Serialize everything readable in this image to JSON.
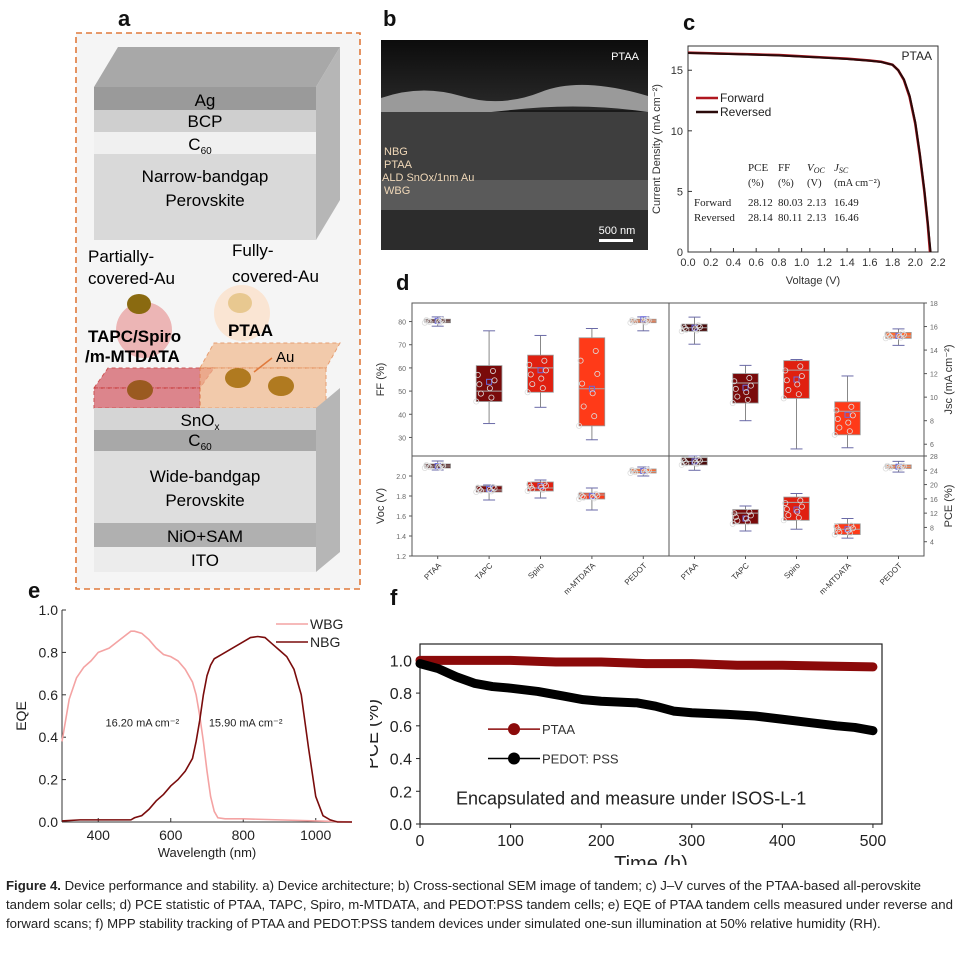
{
  "panels": {
    "a": "a",
    "b": "b",
    "c": "c",
    "d": "d",
    "e": "e",
    "f": "f"
  },
  "architecture": {
    "top_layers": [
      "Ag",
      "BCP",
      "C",
      "Narrow-bandgap",
      "Perovskite"
    ],
    "c60_sub": "60",
    "partially_label_1": "Partially-",
    "partially_label_2": "covered-Au",
    "fully_label_1": "Fully-",
    "fully_label_2": "covered-Au",
    "htl_left_1": "TAPC/Spiro",
    "htl_left_2": "/m-MTDATA",
    "htl_right": "PTAA",
    "au_label": "Au",
    "snox": "SnO",
    "snox_sub": "x",
    "c60": "C",
    "wbg_1": "Wide-bandgap",
    "wbg_2": "Perovskite",
    "nio": "NiO+SAM",
    "ito": "ITO"
  },
  "sem": {
    "corner_label": "PTAA",
    "layers": [
      "NBG",
      "PTAA",
      "ALD SnOx/1nm Au",
      "WBG"
    ],
    "scale_bar": "500 nm"
  },
  "colors": {
    "forward": "#b0171f",
    "reversed": "#2a0a0a",
    "wbg": "#f4a3a3",
    "nbg": "#7a0c0c",
    "ptaa_f": "#8b0a0a",
    "pedot_f": "#000000",
    "dash_orange": "#e07a3c",
    "box_ptaa": "#4a0a0a",
    "box_tapc": "#7a0a0a",
    "box_spiro": "#e02010",
    "box_mtdata": "#ff3a18",
    "box_pedot": "#ff6a30"
  },
  "chart_data": [
    {
      "id": "c",
      "type": "line",
      "title": "",
      "corner_label": "PTAA",
      "xlabel": "Voltage (V)",
      "ylabel": "Current Density (mA cm⁻²)",
      "xlim": [
        0.0,
        2.2
      ],
      "ylim": [
        0,
        17
      ],
      "xticks": [
        "0.0",
        "0.2",
        "0.4",
        "0.6",
        "0.8",
        "1.0",
        "1.2",
        "1.4",
        "1.6",
        "1.8",
        "2.0",
        "2.2"
      ],
      "yticks": [
        "0",
        "5",
        "10",
        "15"
      ],
      "legend": [
        "Forward",
        "Reversed"
      ],
      "series": [
        {
          "name": "Forward",
          "x": [
            0,
            0.2,
            0.4,
            0.6,
            0.8,
            1.0,
            1.2,
            1.4,
            1.6,
            1.7,
            1.8,
            1.85,
            1.9,
            1.95,
            2.0,
            2.04,
            2.08,
            2.11,
            2.13
          ],
          "y": [
            16.45,
            16.4,
            16.35,
            16.3,
            16.25,
            16.15,
            16.05,
            15.95,
            15.8,
            15.7,
            15.45,
            15.0,
            14.2,
            12.8,
            10.6,
            8.0,
            5.0,
            2.3,
            0
          ]
        },
        {
          "name": "Reversed",
          "x": [
            0,
            0.2,
            0.4,
            0.6,
            0.8,
            1.0,
            1.2,
            1.4,
            1.6,
            1.7,
            1.8,
            1.85,
            1.9,
            1.95,
            2.0,
            2.04,
            2.08,
            2.11,
            2.135
          ],
          "y": [
            16.42,
            16.38,
            16.33,
            16.28,
            16.22,
            16.12,
            16.03,
            15.93,
            15.78,
            15.68,
            15.45,
            15.0,
            14.25,
            12.9,
            10.7,
            8.1,
            5.1,
            2.4,
            0
          ]
        }
      ],
      "table": {
        "headers": [
          "PCE",
          "FF",
          "V",
          "J"
        ],
        "header_subs": [
          "",
          "",
          "OC",
          "SC"
        ],
        "units": [
          "(%)",
          "(%)",
          "(V)",
          "(mA cm⁻²)"
        ],
        "rows": [
          {
            "label": "Forward",
            "values": [
              "28.12",
              "80.03",
              "2.13",
              "16.49"
            ]
          },
          {
            "label": "Reversed",
            "values": [
              "28.14",
              "80.11",
              "2.13",
              "16.46"
            ]
          }
        ]
      }
    },
    {
      "id": "d",
      "type": "box",
      "categories": [
        "PTAA",
        "TAPC",
        "Spiro",
        "m-MTDATA",
        "PEDOT"
      ],
      "subplots": [
        {
          "metric": "FF",
          "ylabel": "FF (%)",
          "ylim": [
            22,
            88
          ],
          "yticks": [
            "30",
            "40",
            "50",
            "60",
            "70",
            "80"
          ],
          "axis": "left",
          "boxes": [
            {
              "q1": 79.5,
              "median": 80.2,
              "q3": 81.0,
              "mean": 80.3,
              "wlo": 78,
              "whi": 82
            },
            {
              "q1": 45.5,
              "median": 50,
              "q3": 61,
              "mean": 54,
              "wlo": 36,
              "whi": 76
            },
            {
              "q1": 49.5,
              "median": 60,
              "q3": 65.5,
              "mean": 59,
              "wlo": 43,
              "whi": 74
            },
            {
              "q1": 35,
              "median": 51,
              "q3": 73,
              "mean": 51,
              "wlo": 29,
              "whi": 77
            },
            {
              "q1": 79.5,
              "median": 80.3,
              "q3": 81.0,
              "mean": 81,
              "wlo": 76,
              "whi": 82
            }
          ]
        },
        {
          "metric": "Jsc",
          "ylabel": "Jsc (mA cm⁻²)",
          "ylim": [
            5,
            18
          ],
          "yticks": [
            "6",
            "8",
            "10",
            "12",
            "14",
            "16",
            "18"
          ],
          "axis": "right",
          "boxes": [
            {
              "q1": 15.6,
              "median": 15.9,
              "q3": 16.2,
              "mean": 15.9,
              "wlo": 14.5,
              "whi": 16.8
            },
            {
              "q1": 9.5,
              "median": 11.2,
              "q3": 12,
              "mean": 10.8,
              "wlo": 8,
              "whi": 12.7
            },
            {
              "q1": 9.9,
              "median": 12.3,
              "q3": 13.1,
              "mean": 11.5,
              "wlo": 5.6,
              "whi": 13.2
            },
            {
              "q1": 6.8,
              "median": 8.8,
              "q3": 9.6,
              "mean": 8.5,
              "wlo": 5.7,
              "whi": 11.8
            },
            {
              "q1": 15.0,
              "median": 15.2,
              "q3": 15.5,
              "mean": 15.2,
              "wlo": 14.4,
              "whi": 15.8
            }
          ]
        },
        {
          "metric": "Voc",
          "ylabel": "Voc (V)",
          "ylim": [
            1.2,
            2.2
          ],
          "yticks": [
            "1.2",
            "1.4",
            "1.6",
            "1.8",
            "2.0"
          ],
          "axis": "left",
          "boxes": [
            {
              "q1": 2.08,
              "median": 2.1,
              "q3": 2.12,
              "mean": 2.1,
              "wlo": 2.06,
              "whi": 2.15
            },
            {
              "q1": 1.84,
              "median": 1.86,
              "q3": 1.9,
              "mean": 1.87,
              "wlo": 1.76,
              "whi": 1.91
            },
            {
              "q1": 1.85,
              "median": 1.88,
              "q3": 1.94,
              "mean": 1.9,
              "wlo": 1.78,
              "whi": 1.96
            },
            {
              "q1": 1.77,
              "median": 1.81,
              "q3": 1.83,
              "mean": 1.8,
              "wlo": 1.66,
              "whi": 1.88
            },
            {
              "q1": 2.03,
              "median": 2.045,
              "q3": 2.07,
              "mean": 2.05,
              "wlo": 2.0,
              "whi": 2.09
            }
          ]
        },
        {
          "metric": "PCE",
          "ylabel": "PCE (%)",
          "ylim": [
            0,
            28
          ],
          "yticks": [
            "4",
            "8",
            "12",
            "16",
            "20",
            "24",
            "28"
          ],
          "axis": "right",
          "boxes": [
            {
              "q1": 25.5,
              "median": 26.5,
              "q3": 27.5,
              "mean": 26.5,
              "wlo": 24,
              "whi": 28
            },
            {
              "q1": 9,
              "median": 12,
              "q3": 13,
              "mean": 10.5,
              "wlo": 7,
              "whi": 14
            },
            {
              "q1": 10,
              "median": 15,
              "q3": 16.5,
              "mean": 13,
              "wlo": 7.5,
              "whi": 17.5
            },
            {
              "q1": 6,
              "median": 7.5,
              "q3": 9,
              "mean": 7.5,
              "wlo": 5,
              "whi": 10.5
            },
            {
              "q1": 24.5,
              "median": 25,
              "q3": 25.5,
              "mean": 25,
              "wlo": 23.5,
              "whi": 26.5
            }
          ]
        }
      ],
      "xtick_labels": [
        "PTAA",
        "TAPC",
        "Spiro",
        "m-MTDATA",
        "PEDOT",
        "PTAA",
        "TAPC",
        "Spiro",
        "m-MTDATA",
        "PEDOT"
      ]
    },
    {
      "id": "e",
      "type": "line",
      "xlabel": "Wavelength (nm)",
      "ylabel": "EQE",
      "xlim": [
        300,
        1100
      ],
      "ylim": [
        0,
        1.0
      ],
      "xticks": [
        "400",
        "600",
        "800",
        "1000"
      ],
      "yticks": [
        "0.0",
        "0.2",
        "0.4",
        "0.6",
        "0.8",
        "1.0"
      ],
      "legend": [
        "WBG",
        "NBG"
      ],
      "annotations": [
        "16.20 mA cm⁻²",
        "15.90 mA cm⁻²"
      ],
      "series": [
        {
          "name": "WBG",
          "x": [
            300,
            320,
            340,
            360,
            380,
            400,
            430,
            460,
            490,
            500,
            520,
            540,
            560,
            580,
            600,
            620,
            640,
            660,
            670,
            680,
            690,
            700,
            710,
            720,
            730,
            750,
            800,
            900,
            1000,
            1100
          ],
          "y": [
            0.38,
            0.58,
            0.68,
            0.73,
            0.76,
            0.8,
            0.82,
            0.86,
            0.9,
            0.9,
            0.89,
            0.86,
            0.82,
            0.79,
            0.78,
            0.76,
            0.72,
            0.66,
            0.6,
            0.5,
            0.38,
            0.24,
            0.12,
            0.05,
            0.02,
            0.015,
            0.015,
            0.01,
            0.005,
            0.0
          ]
        },
        {
          "name": "NBG",
          "x": [
            300,
            350,
            400,
            450,
            490,
            500,
            520,
            540,
            560,
            580,
            600,
            620,
            640,
            660,
            670,
            680,
            690,
            700,
            710,
            720,
            740,
            760,
            780,
            800,
            820,
            840,
            860,
            880,
            900,
            920,
            940,
            960,
            980,
            1000,
            1020,
            1040,
            1060,
            1100
          ],
          "y": [
            0.005,
            0.01,
            0.01,
            0.01,
            0.01,
            0.02,
            0.03,
            0.06,
            0.1,
            0.13,
            0.17,
            0.2,
            0.24,
            0.3,
            0.38,
            0.48,
            0.6,
            0.69,
            0.74,
            0.77,
            0.79,
            0.81,
            0.83,
            0.85,
            0.87,
            0.875,
            0.87,
            0.84,
            0.81,
            0.78,
            0.72,
            0.6,
            0.35,
            0.12,
            0.03,
            0.01,
            0.0,
            0.0
          ]
        }
      ]
    },
    {
      "id": "f",
      "type": "scatter",
      "xlabel": "Time (h)",
      "ylabel": "PCE (%)",
      "xlim": [
        0,
        510
      ],
      "ylim": [
        0,
        1.1
      ],
      "xticks": [
        "0",
        "100",
        "200",
        "300",
        "400",
        "500"
      ],
      "yticks": [
        "0.0",
        "0.2",
        "0.4",
        "0.6",
        "0.8",
        "1.0"
      ],
      "legend": [
        "PTAA",
        "PEDOT: PSS"
      ],
      "annotation": "Encapsulated and measure under ISOS-L-1",
      "series": [
        {
          "name": "PTAA",
          "x": [
            0,
            50,
            100,
            150,
            200,
            250,
            300,
            350,
            400,
            450,
            500
          ],
          "y": [
            1.0,
            1.0,
            1.0,
            0.99,
            0.99,
            0.98,
            0.98,
            0.97,
            0.97,
            0.965,
            0.96
          ]
        },
        {
          "name": "PEDOT: PSS",
          "x": [
            0,
            20,
            40,
            60,
            80,
            100,
            130,
            160,
            180,
            200,
            240,
            260,
            280,
            300,
            340,
            370,
            400,
            430,
            460,
            480,
            500
          ],
          "y": [
            0.98,
            0.95,
            0.9,
            0.86,
            0.84,
            0.83,
            0.81,
            0.78,
            0.76,
            0.75,
            0.74,
            0.72,
            0.69,
            0.68,
            0.67,
            0.66,
            0.64,
            0.62,
            0.6,
            0.59,
            0.57
          ]
        }
      ]
    }
  ],
  "caption": {
    "label": "Figure 4.",
    "text": " Device performance and stability. a) Device architecture; b) Cross-sectional SEM image of tandem; c) J–V curves of the PTAA-based all-perovskite tandem solar cells; d) PCE statistic of PTAA, TAPC, Spiro, m-MTDATA, and PEDOT:PSS tandem cells; e) EQE of PTAA tandem cells measured under reverse and forward scans; f) MPP stability tracking of PTAA and PEDOT:PSS tandem devices under simulated one-sun illumination at 50% relative humidity (RH)."
  }
}
